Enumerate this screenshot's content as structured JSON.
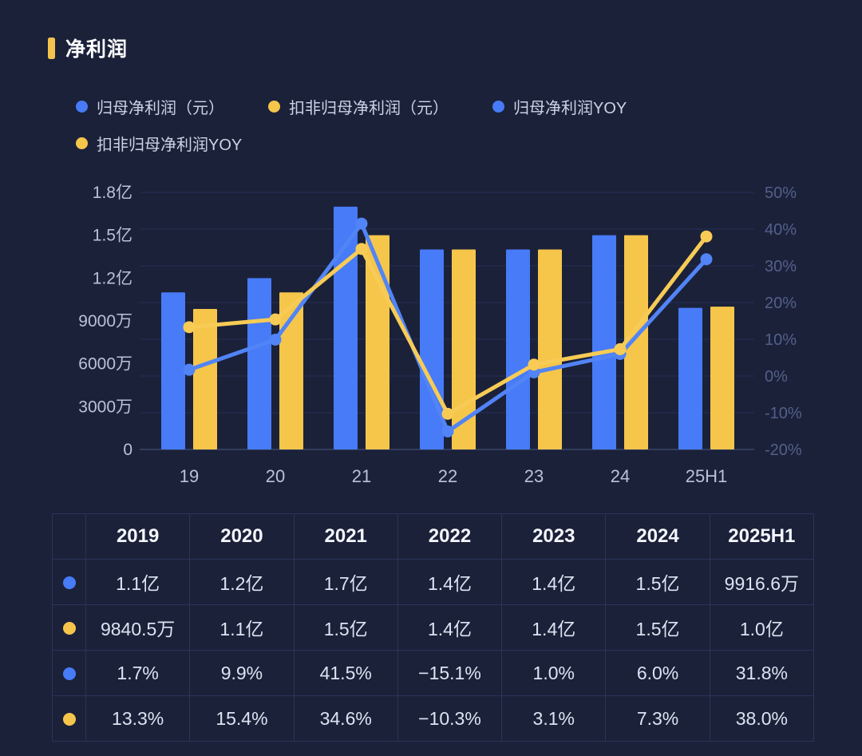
{
  "title": "净利润",
  "theme": {
    "background": "#1B2139",
    "accent_bar": "#F3C44D",
    "grid_color": "#252E52",
    "axis_line_color": "#3B456B",
    "axis_text_left": "#B8C2D8",
    "axis_text_right": "#53608A"
  },
  "legend": {
    "items": [
      {
        "id": "net-profit",
        "label": "归母净利润（元）",
        "color": "#477BF7"
      },
      {
        "id": "deducted-net-profit",
        "label": "扣非归母净利润（元）",
        "color": "#F6C64B"
      },
      {
        "id": "net-profit-yoy",
        "label": "归母净利润YOY",
        "color": "#477BF7"
      },
      {
        "id": "deducted-net-profit-yoy",
        "label": "扣非归母净利润YOY",
        "color": "#F6C64B"
      }
    ]
  },
  "chart_data": {
    "type": "combo-bar-line",
    "categories": [
      "19",
      "20",
      "21",
      "22",
      "23",
      "24",
      "25H1"
    ],
    "bar_series": [
      {
        "id": "net-profit",
        "name": "归母净利润（元）",
        "color": "#477BF7",
        "unit": "亿元",
        "values": [
          1.1,
          1.2,
          1.7,
          1.4,
          1.4,
          1.5,
          0.99166
        ]
      },
      {
        "id": "deducted-net-profit",
        "name": "扣非归母净利润（元）",
        "color": "#F6C64B",
        "unit": "亿元",
        "values": [
          0.98405,
          1.1,
          1.5,
          1.4,
          1.4,
          1.5,
          1.0
        ]
      }
    ],
    "line_series": [
      {
        "id": "net-profit-yoy",
        "name": "归母净利润YOY",
        "color": "#5184F6",
        "unit": "%",
        "values": [
          1.7,
          9.9,
          41.5,
          -15.1,
          1.0,
          6.0,
          31.8
        ]
      },
      {
        "id": "deducted-net-profit-yoy",
        "name": "扣非归母净利润YOY",
        "color": "#F7CB55",
        "unit": "%",
        "values": [
          13.3,
          15.4,
          34.6,
          -10.3,
          3.1,
          7.3,
          38.0
        ]
      }
    ],
    "left_axis": {
      "ticks": [
        "1.8亿",
        "1.5亿",
        "1.2亿",
        "9000万",
        "6000万",
        "3000万",
        "0"
      ],
      "min_yi": 0,
      "max_yi": 1.8
    },
    "right_axis": {
      "ticks": [
        "50%",
        "40%",
        "30%",
        "20%",
        "10%",
        "0%",
        "-10%",
        "-20%"
      ],
      "min_pct": -20,
      "max_pct": 50
    },
    "grid": true,
    "legend_position": "top"
  },
  "table": {
    "headers": [
      "",
      "2019",
      "2020",
      "2021",
      "2022",
      "2023",
      "2024",
      "2025H1"
    ],
    "rows": [
      {
        "dot_color": "#477BF7",
        "values": [
          "1.1亿",
          "1.2亿",
          "1.7亿",
          "1.4亿",
          "1.4亿",
          "1.5亿",
          "9916.6万"
        ]
      },
      {
        "dot_color": "#F6C64B",
        "values": [
          "9840.5万",
          "1.1亿",
          "1.5亿",
          "1.4亿",
          "1.4亿",
          "1.5亿",
          "1.0亿"
        ]
      },
      {
        "dot_color": "#477BF7",
        "values": [
          "1.7%",
          "9.9%",
          "41.5%",
          "−15.1%",
          "1.0%",
          "6.0%",
          "31.8%"
        ]
      },
      {
        "dot_color": "#F6C64B",
        "values": [
          "13.3%",
          "15.4%",
          "34.6%",
          "−10.3%",
          "3.1%",
          "7.3%",
          "38.0%"
        ]
      }
    ]
  }
}
